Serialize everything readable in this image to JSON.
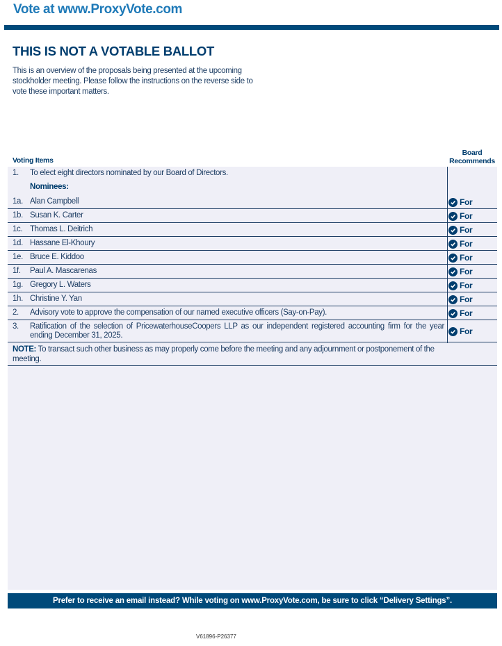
{
  "header": {
    "title": "Vote at www.ProxyVote.com"
  },
  "colors": {
    "header_text": "#1f7ab8",
    "bar": "#004a7a",
    "navy": "#003d6e",
    "panel": "#efeff7"
  },
  "main": {
    "title": "THIS IS NOT A VOTABLE BALLOT",
    "intro": "This is an overview of the proposals being presented at the upcoming stockholder meeting. Please follow the instructions on the reverse side to vote these important matters."
  },
  "table": {
    "col_items": "Voting Items",
    "col_recommends_1": "Board",
    "col_recommends_2": "Recommends",
    "proposal1": {
      "num": "1.",
      "text": "To elect eight directors nominated by our Board of Directors."
    },
    "nominees_label": "Nominees:",
    "rows": [
      {
        "num": "1a.",
        "text": "Alan Campbell",
        "rec": "For",
        "icon": "check-circle-icon"
      },
      {
        "num": "1b.",
        "text": "Susan K. Carter",
        "rec": "For",
        "icon": "check-circle-icon"
      },
      {
        "num": "1c.",
        "text": "Thomas L. Deitrich",
        "rec": "For",
        "icon": "check-circle-icon"
      },
      {
        "num": "1d.",
        "text": "Hassane El-Khoury",
        "rec": "For",
        "icon": "check-circle-icon"
      },
      {
        "num": "1e.",
        "text": "Bruce E. Kiddoo",
        "rec": "For",
        "icon": "check-circle-icon"
      },
      {
        "num": "1f.",
        "text": "Paul A. Mascarenas",
        "rec": "For",
        "icon": "check-circle-icon"
      },
      {
        "num": "1g.",
        "text": "Gregory L. Waters",
        "rec": "For",
        "icon": "check-circle-icon"
      },
      {
        "num": "1h.",
        "text": "Christine Y. Yan",
        "rec": "For",
        "icon": "check-circle-icon"
      },
      {
        "num": "2.",
        "text": "Advisory vote to approve the compensation of our named executive officers (Say-on-Pay).",
        "rec": "For",
        "icon": "check-circle-icon"
      },
      {
        "num": "3.",
        "text": "Ratification of the selection of PricewaterhouseCoopers LLP as our independent registered accounting firm for the year ending December 31, 2025.",
        "rec": "For",
        "icon": "check-circle-icon"
      }
    ],
    "note_label": "NOTE:",
    "note_text": " To transact such other business as may properly come before the meeting and any adjournment or postponement of the meeting."
  },
  "footer": {
    "banner": "Prefer to receive an email instead? While voting on www.ProxyVote.com, be sure to click “Delivery Settings”.",
    "code": "V61896-P26377"
  }
}
